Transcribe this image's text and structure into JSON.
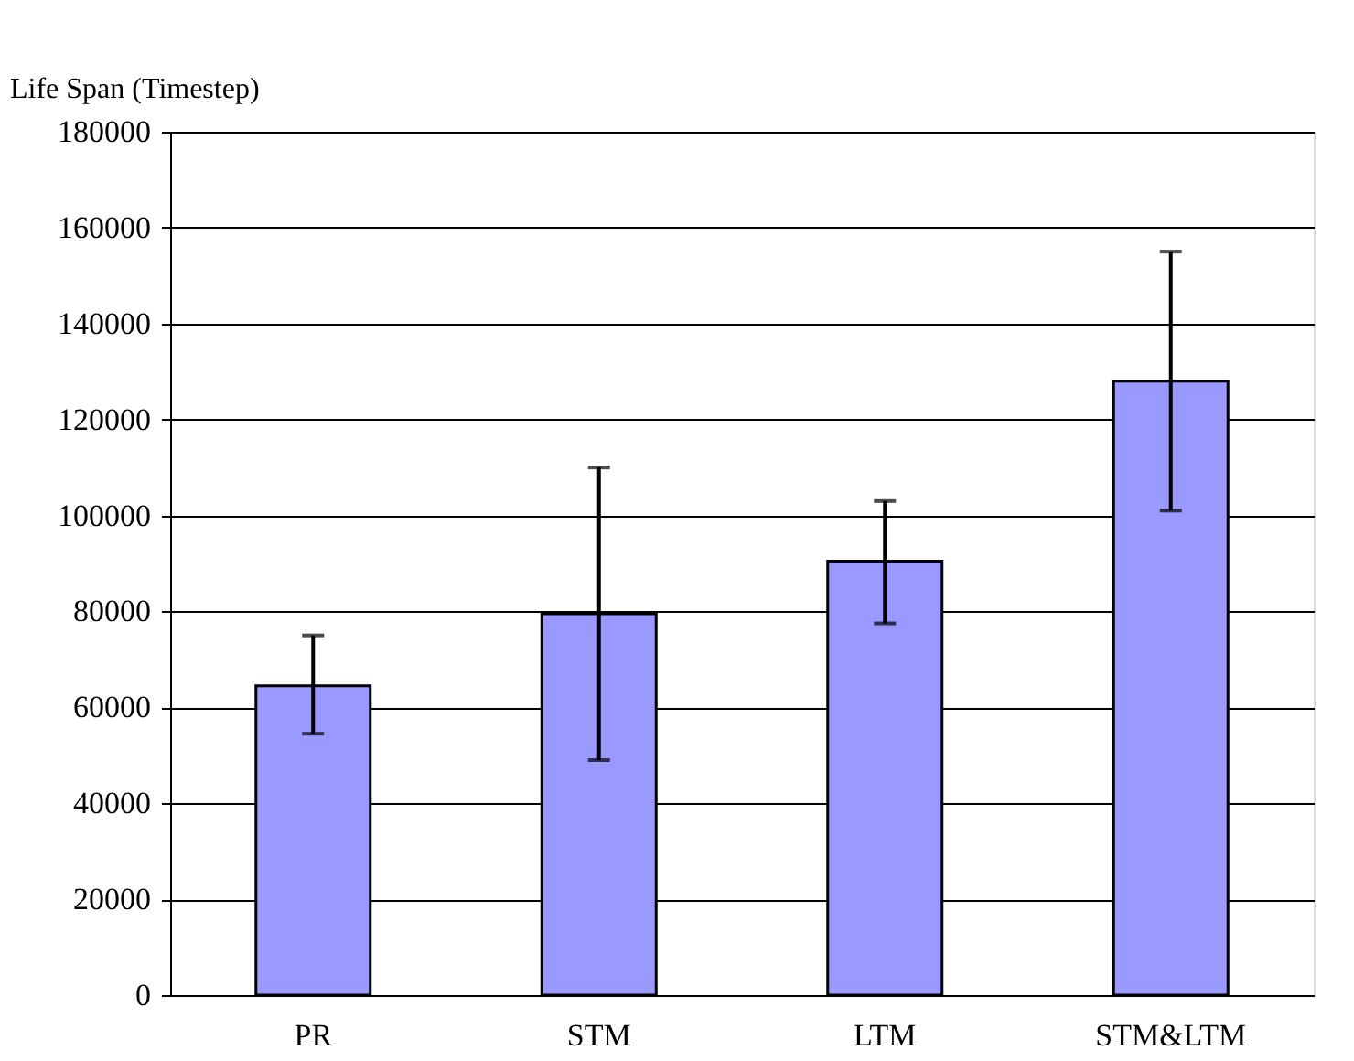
{
  "chart_data": {
    "type": "bar",
    "ylabel": "Life Span (Timestep)",
    "categories": [
      "PR",
      "STM",
      "LTM",
      "STM&LTM"
    ],
    "values": [
      64500,
      79500,
      90500,
      128000
    ],
    "errors": [
      [
        54500,
        75000
      ],
      [
        49000,
        110000
      ],
      [
        77500,
        103000
      ],
      [
        101000,
        155000
      ]
    ],
    "color": "#9999ff",
    "ylim": [
      0,
      180000
    ],
    "yticks": [
      0,
      20000,
      40000,
      60000,
      80000,
      100000,
      120000,
      140000,
      160000,
      180000
    ],
    "grid": "y"
  }
}
